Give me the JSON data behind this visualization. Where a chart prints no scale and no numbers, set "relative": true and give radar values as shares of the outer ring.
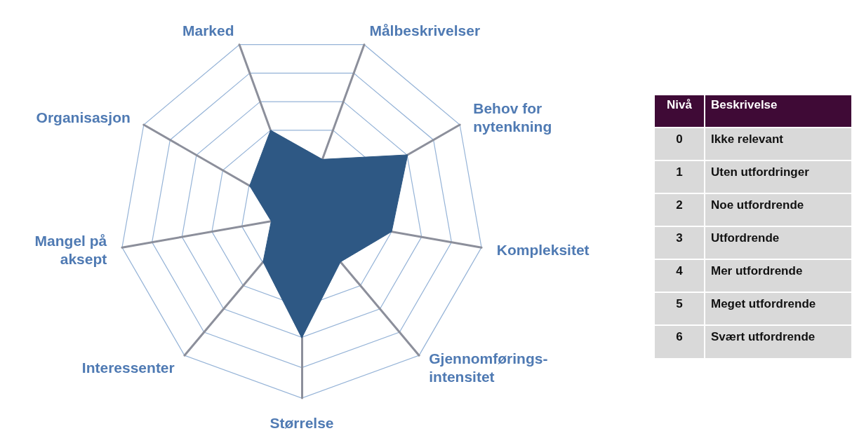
{
  "chart_data": {
    "type": "radar",
    "categories": [
      "Målbeskrivelser",
      "Behov for\nnytenkning",
      "Kompleksitet",
      "Gjennomførings-\nintensitet",
      "Størrelse",
      "Interessenter",
      "Mangel på\naksept",
      "Organisasjon",
      "Marked"
    ],
    "series": [
      {
        "color": "#2e5884",
        "values": [
          0.33,
          0.67,
          0.5,
          0.33,
          0.67,
          0.33,
          0.17,
          0.33,
          0.5
        ]
      }
    ],
    "relative": true,
    "grid": true,
    "annotations": [
      "Nivå",
      "Beskrivelse",
      "0",
      "Ikke relevant",
      "1",
      "Uten utfordringer",
      "2",
      "Noe utfordrende",
      "3",
      "Utfordrende",
      "4",
      "Mer utfordrende",
      "5",
      "Meget utfordrende",
      "6",
      "Svært utfordrende"
    ]
  }
}
